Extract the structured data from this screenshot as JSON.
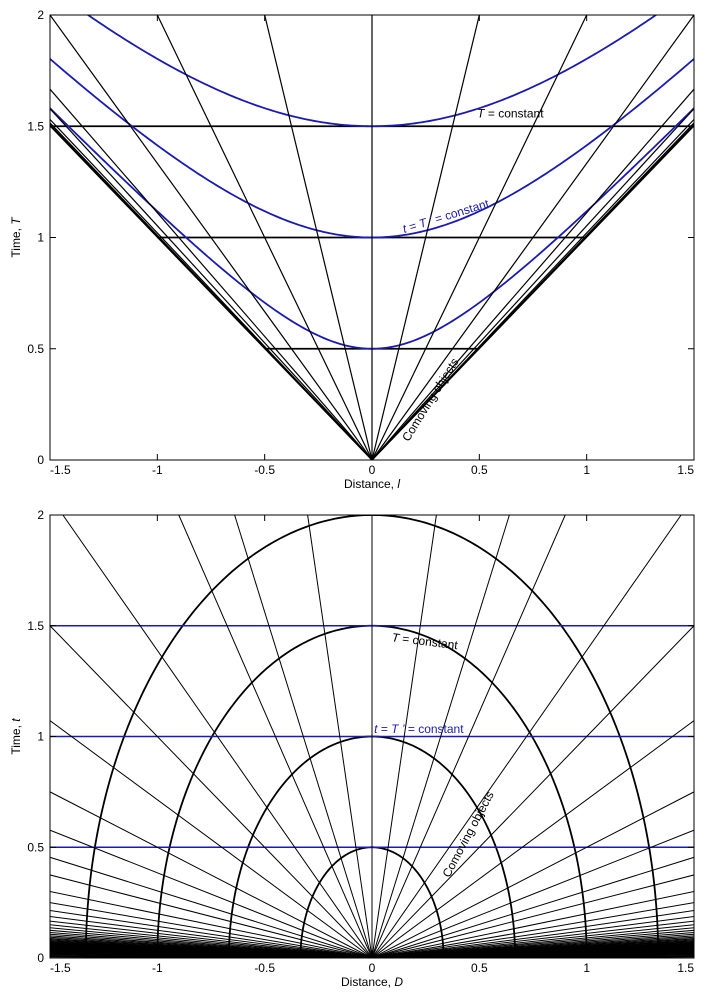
{
  "chart_data": [
    {
      "type": "line",
      "xlabel": "Distance, l",
      "xlabel_parts": [
        "Distance, ",
        "l"
      ],
      "ylabel": "Time, T",
      "ylabel_parts": [
        "Time, ",
        "T"
      ],
      "xlim": [
        -1.5,
        1.5
      ],
      "ylim": [
        0,
        2
      ],
      "xticks": [
        -1.5,
        -1,
        -0.5,
        0,
        0.5,
        1,
        1.5
      ],
      "xtick_labels": [
        "-1.5",
        "-1",
        "-0.5",
        "0",
        "0.5",
        "1",
        "1.5"
      ],
      "yticks": [
        0,
        0.5,
        1,
        1.5,
        2
      ],
      "ytick_labels": [
        "0",
        "0.5",
        "1",
        "1.5",
        "2"
      ],
      "colors": {
        "black": "#000000",
        "blue": "#1a1ab4"
      },
      "series": [
        {
          "name": "T = constant",
          "color": "#000000",
          "kind": "horizontal-segment",
          "segments": [
            {
              "y": 0.5,
              "x0": -0.5,
              "x1": 0.5
            },
            {
              "y": 1.0,
              "x0": -1.0,
              "x1": 1.0
            },
            {
              "y": 1.5,
              "x0": -1.5,
              "x1": 1.5
            }
          ]
        },
        {
          "name": "t = T' = constant",
          "color": "#1a1ab4",
          "kind": "hyperbola",
          "equation": "T = sqrt(c^2 + l^2)",
          "c_values": [
            0.5,
            1.0,
            1.5
          ]
        },
        {
          "name": "Comoving objects",
          "color": "#000000",
          "kind": "world-lines-from-origin",
          "equation": "T = l / v",
          "velocities": [
            0,
            0.25,
            0.5,
            0.75,
            0.9,
            0.95,
            0.98,
            0.99,
            0.995,
            0.999
          ]
        }
      ],
      "annotations": [
        {
          "parts": [
            {
              "t": "T",
              "italic": true
            },
            {
              "t": " = constant"
            }
          ],
          "color": "#000000",
          "x": 0.49,
          "y": 1.54,
          "angle": 0
        },
        {
          "parts": [
            {
              "t": "t",
              "italic": true
            },
            {
              "t": " = "
            },
            {
              "t": "T ’",
              "italic": true
            },
            {
              "t": " = constant"
            }
          ],
          "color": "#1a1ab4",
          "x": 0.15,
          "y": 1.02,
          "angle": -17
        },
        {
          "parts": [
            {
              "t": "Comoving objects"
            }
          ],
          "color": "#000000",
          "x": 0.17,
          "y": 0.08,
          "angle": -58
        }
      ]
    },
    {
      "type": "line",
      "xlabel": "Distance, D",
      "xlabel_parts": [
        "Distance, ",
        "D"
      ],
      "ylabel": "Time, t",
      "ylabel_parts": [
        "Time, ",
        "t"
      ],
      "xlim": [
        -1.5,
        1.5
      ],
      "ylim": [
        0,
        2
      ],
      "xticks": [
        -1.5,
        -1,
        -0.5,
        0,
        0.5,
        1,
        1.5
      ],
      "xtick_labels": [
        "-1.5",
        "-1",
        "-0.5",
        "0",
        "0.5",
        "1",
        "1.5"
      ],
      "yticks": [
        0,
        0.5,
        1,
        1.5,
        2
      ],
      "ytick_labels": [
        "0",
        "0.5",
        "1",
        "1.5",
        "2"
      ],
      "colors": {
        "black": "#000000",
        "blue": "#1a1ab4"
      },
      "series": [
        {
          "name": "T = constant",
          "color": "#000000",
          "kind": "half-ellipse",
          "equation": "(D / (T/1.5))^2 + (t / T)^2 = 1",
          "T_values": [
            0.5,
            1.0,
            1.5,
            2.0
          ]
        },
        {
          "name": "t = T' = constant",
          "color": "#1a1ab4",
          "kind": "horizontal-line",
          "y_values": [
            0.5,
            1.0,
            1.5
          ]
        },
        {
          "name": "Comoving objects",
          "color": "#000000",
          "kind": "world-lines-from-origin",
          "equation": "t = D / w",
          "slopes_w": [
            0,
            0.15,
            0.32,
            0.45,
            0.72,
            1.0,
            1.4,
            2.0,
            2.6,
            3.3,
            4.0,
            5.0,
            6.0,
            7.0,
            8.0,
            9.0,
            10.0,
            11.0,
            12.0,
            13.0,
            14.0,
            15.0,
            16.0,
            17.0,
            18.0,
            19.0,
            20.0,
            21.0,
            22.0,
            23.0,
            24.0,
            25.0,
            26.0,
            27.0,
            28.0,
            29.0,
            30.0,
            31.0,
            32.0,
            33.0,
            34.0,
            35.0,
            36.0,
            37.0,
            38.0,
            40.0,
            43.0,
            46.0,
            50.0,
            55.0,
            60.0,
            70.0,
            80.0,
            100.0,
            130.0,
            180.0,
            300.0
          ]
        }
      ],
      "annotations": [
        {
          "parts": [
            {
              "t": "T",
              "italic": true
            },
            {
              "t": " = constant"
            }
          ],
          "color": "#000000",
          "x": 0.09,
          "y": 1.43,
          "angle": 7
        },
        {
          "parts": [
            {
              "t": "t",
              "italic": true
            },
            {
              "t": " = "
            },
            {
              "t": "T ’",
              "italic": true
            },
            {
              "t": " = constant"
            }
          ],
          "color": "#1a1ab4",
          "x": 0.01,
          "y": 1.015,
          "angle": 0
        },
        {
          "parts": [
            {
              "t": "Comoving objects"
            }
          ],
          "color": "#000000",
          "x": 0.36,
          "y": 0.36,
          "angle": -62
        }
      ]
    }
  ]
}
